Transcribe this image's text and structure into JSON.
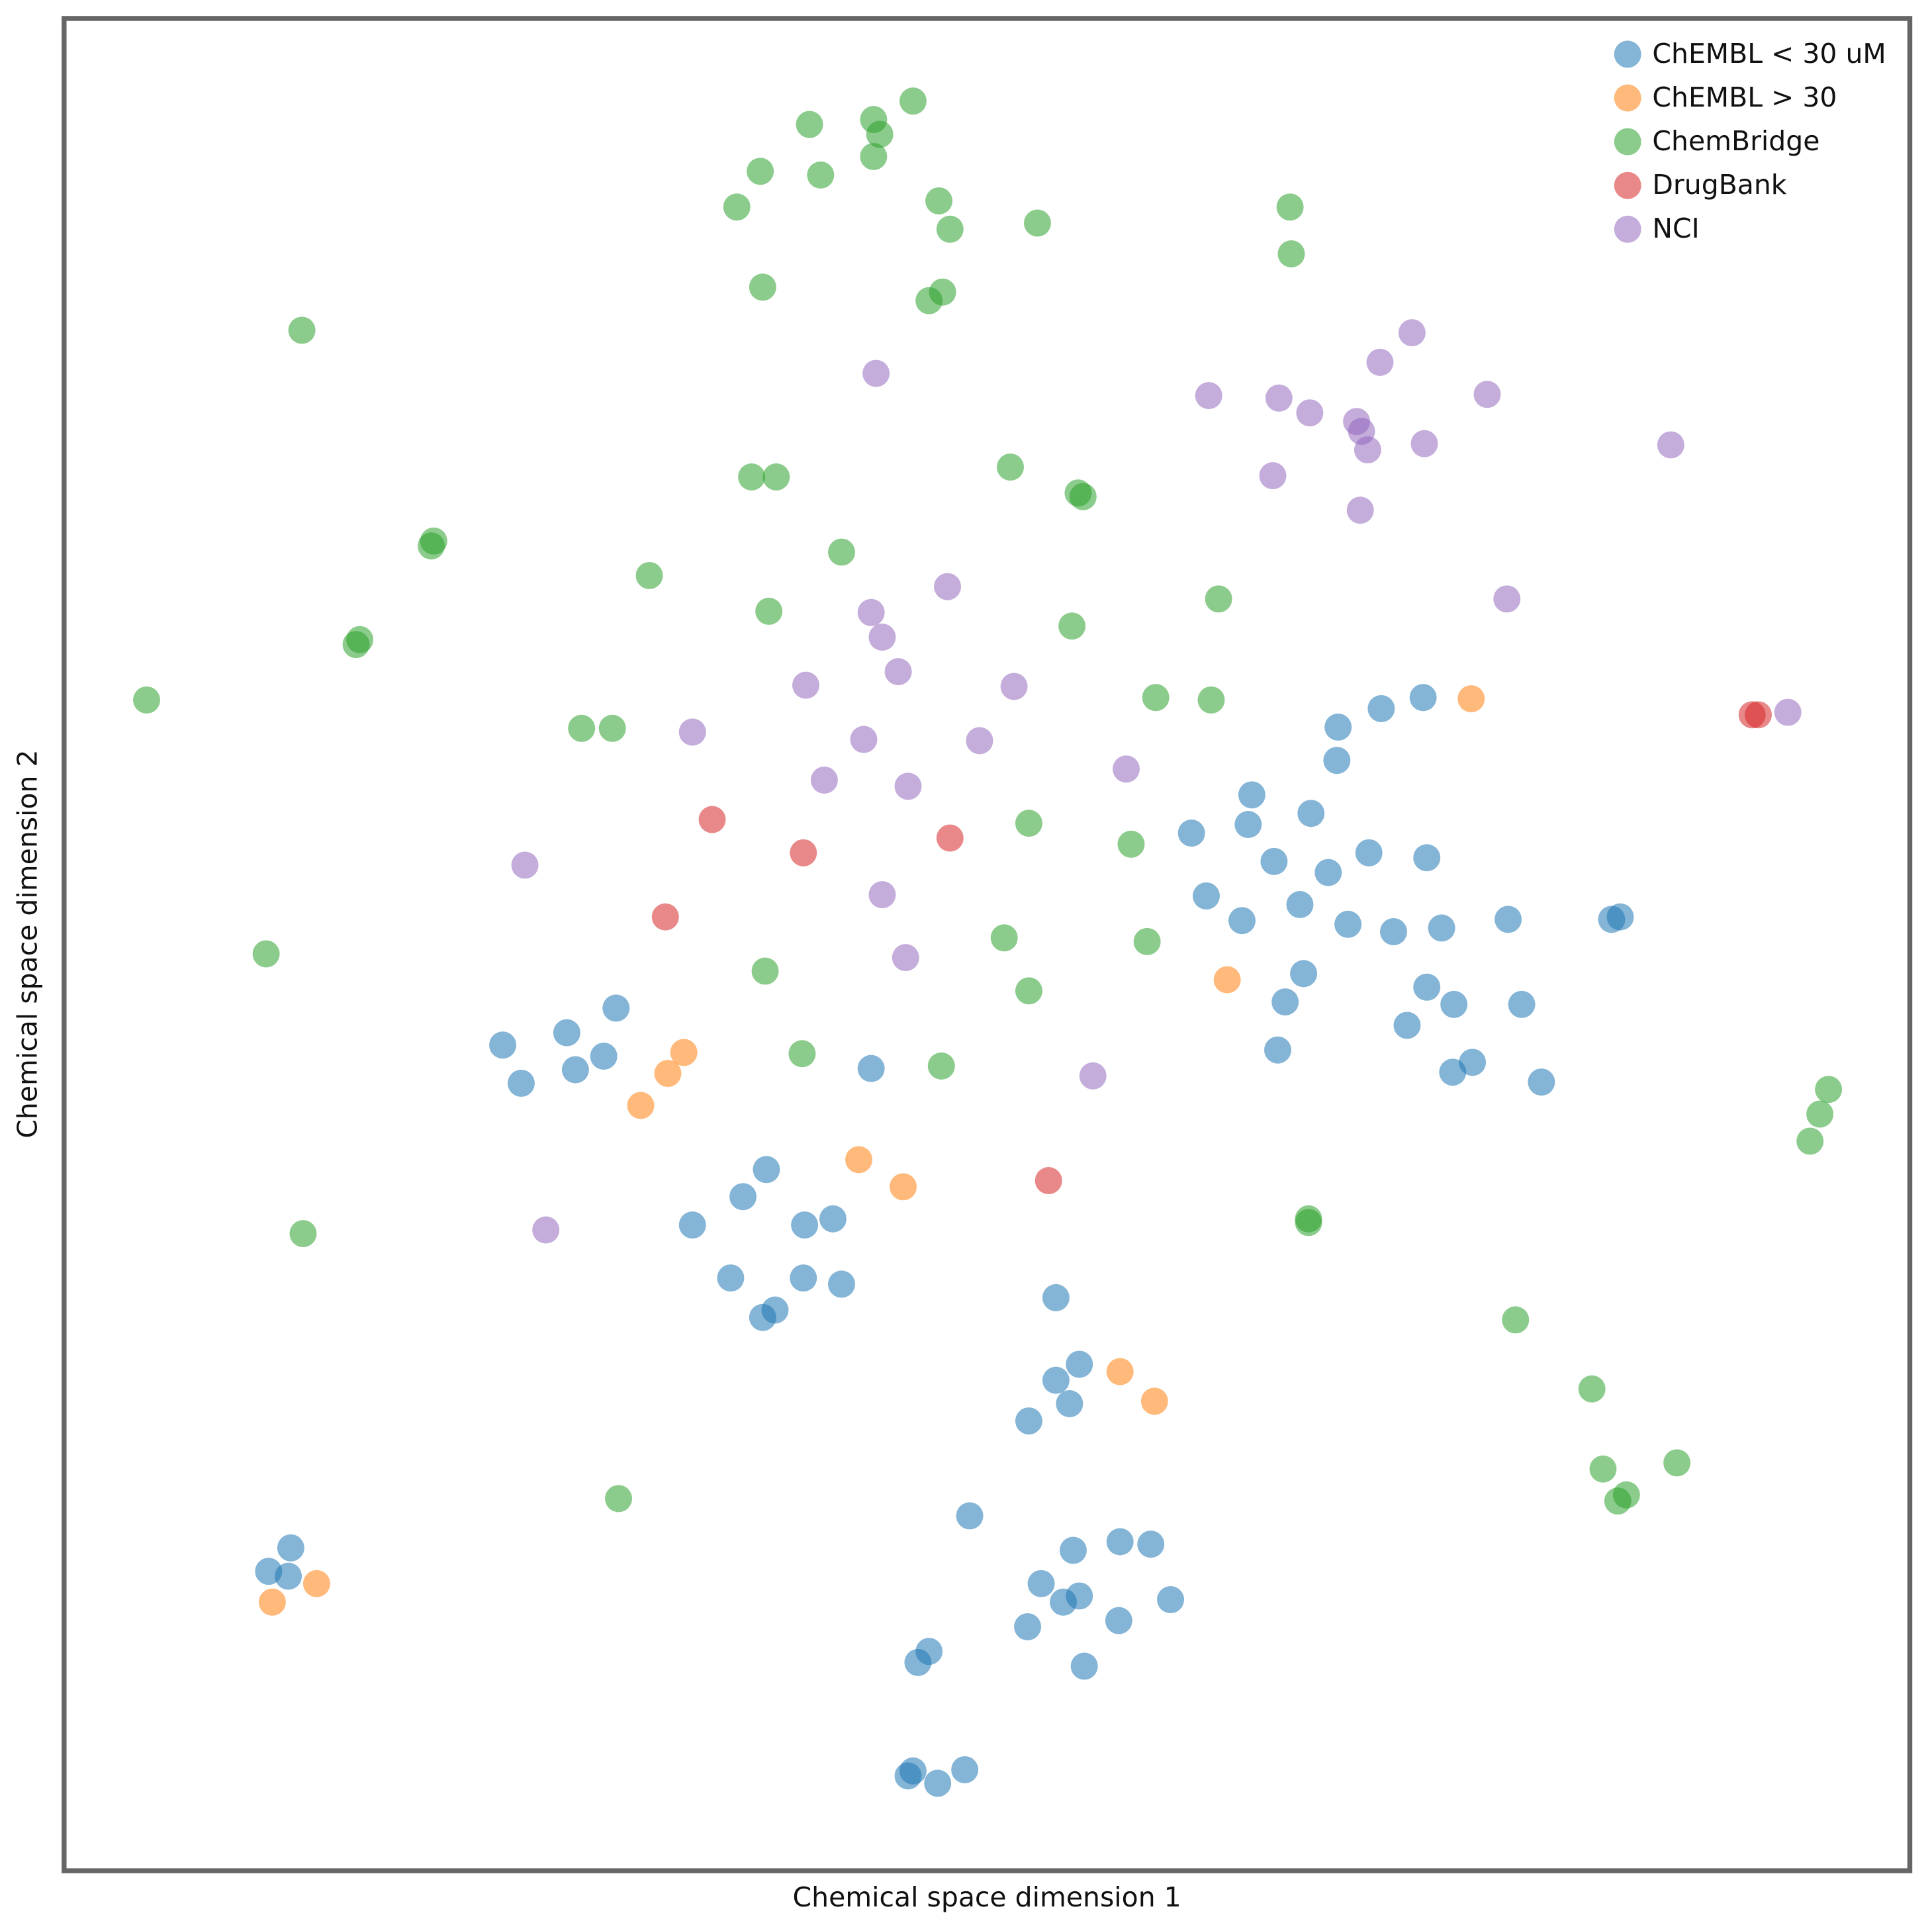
{
  "chart_data": {
    "type": "scatter",
    "x_label": "Chemical space dimension 1",
    "y_label": "Chemical space dimension 2",
    "xlim": [
      0,
      1498
    ],
    "ylim": [
      0,
      1503
    ],
    "legend": "upper right",
    "series": [
      {
        "name": "ChEMBL < 30 uM",
        "color": "#1f77b4",
        "x": [
          1034,
          1069,
          1103,
          1033,
          964,
          1012,
          961,
          915,
          982,
          1026,
          1059,
          1106,
          927,
          1003,
          956,
          1042,
          1079,
          1118,
          1172,
          1256,
          1263,
          1006,
          991,
          1106,
          1128,
          1183,
          1090,
          985,
          1143,
          1127,
          1199,
          448,
          408,
          356,
          438,
          415,
          371,
          655,
          570,
          551,
          624,
          601,
          510,
          541,
          600,
          631,
          577,
          567,
          805,
          824,
          805,
          816,
          783,
          735,
          819,
          857,
          882,
          793,
          824,
          811,
          898,
          782,
          856,
          828,
          702,
          693,
          689,
          685,
          709,
          731,
          184,
          166,
          182
        ],
        "y": [
          928,
          943,
          952,
          901,
          873,
          858,
          849,
          842,
          819,
          810,
          826,
          822,
          791,
          784,
          771,
          768,
          762,
          765,
          772,
          772,
          774,
          728,
          705,
          717,
          703,
          703,
          686,
          666,
          656,
          648,
          640,
          700,
          680,
          670,
          661,
          650,
          639,
          651,
          569,
          547,
          529,
          524,
          524,
          481,
          481,
          476,
          455,
          449,
          465,
          411,
          398,
          379,
          365,
          288,
          260,
          267,
          265,
          233,
          223,
          218,
          220,
          198,
          203,
          166,
          178,
          169,
          81,
          77,
          71,
          82,
          262,
          243,
          239
        ]
      },
      {
        "name": "ChEMBL > 30",
        "color": "#ff7f0e",
        "x": [
          1142,
          944,
          503,
          490,
          468,
          645,
          681,
          857,
          885,
          205,
          169
        ],
        "y": [
          951,
          723,
          664,
          647,
          621,
          577,
          555,
          405,
          381,
          233,
          218
        ]
      },
      {
        "name": "ChemBridge",
        "color": "#2ca02c",
        "x": [
          689,
          605,
          657,
          662,
          657,
          565,
          614,
          546,
          710,
          719,
          790,
          995,
          996,
          567,
          713,
          702,
          193,
          558,
          578,
          768,
          823,
          827,
          300,
          298,
          631,
          475,
          240,
          237,
          572,
          937,
          818,
          67,
          886,
          931,
          420,
          445,
          783,
          866,
          164,
          763,
          879,
          569,
          783,
          599,
          712,
          1432,
          1425,
          1417,
          194,
          1010,
          1010,
          1178,
          1240,
          450,
          1249,
          1309,
          1268,
          1261
        ],
        "y": [
          1436,
          1417,
          1421,
          1409,
          1391,
          1379,
          1376,
          1350,
          1355,
          1332,
          1337,
          1350,
          1312,
          1285,
          1281,
          1274,
          1250,
          1131,
          1131,
          1139,
          1118,
          1115,
          1079,
          1075,
          1070,
          1051,
          999,
          995,
          1022,
          1032,
          1010,
          950,
          952,
          950,
          927,
          927,
          850,
          833,
          744,
          757,
          754,
          730,
          714,
          663,
          653,
          634,
          614,
          592,
          517,
          529,
          526,
          447,
          391,
          302,
          326,
          331,
          305,
          300
        ]
      },
      {
        "name": "DrugBank",
        "color": "#d62728",
        "x": [
          526,
          600,
          719,
          488,
          799,
          1370,
          1375
        ],
        "y": [
          853,
          826,
          838,
          774,
          560,
          938,
          938
        ]
      },
      {
        "name": "NCI",
        "color": "#9467bd",
        "x": [
          1094,
          1068,
          929,
          986,
          1011,
          1155,
          1049,
          1053,
          1058,
          1104,
          1304,
          981,
          1052,
          659,
          717,
          655,
          664,
          1171,
          677,
          602,
          771,
          510,
          649,
          743,
          617,
          685,
          862,
          1399,
          374,
          664,
          683,
          835,
          391
        ],
        "y": [
          1248,
          1224,
          1197,
          1195,
          1183,
          1198,
          1176,
          1168,
          1153,
          1158,
          1157,
          1132,
          1104,
          1215,
          1042,
          1021,
          1001,
          1032,
          973,
          962,
          961,
          924,
          918,
          917,
          885,
          880,
          894,
          940,
          816,
          792,
          741,
          645,
          520
        ]
      }
    ]
  }
}
